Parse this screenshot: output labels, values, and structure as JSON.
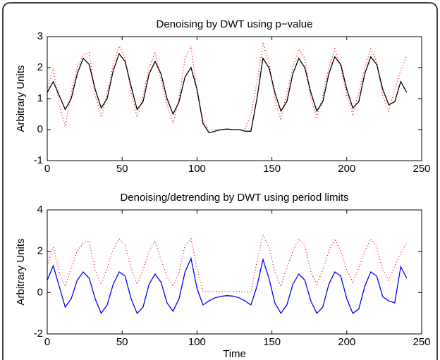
{
  "chart_data": [
    {
      "type": "line",
      "title": "Denoising by DWT using p−value",
      "y_label": "Arbitrary Units",
      "x": [
        0,
        4,
        8,
        12,
        16,
        20,
        24,
        28,
        32,
        36,
        40,
        44,
        48,
        52,
        56,
        60,
        64,
        68,
        72,
        76,
        80,
        84,
        88,
        92,
        96,
        100,
        104,
        108,
        112,
        116,
        120,
        124,
        128,
        132,
        136,
        140,
        144,
        148,
        152,
        156,
        160,
        164,
        168,
        172,
        176,
        180,
        184,
        188,
        192,
        196,
        200,
        204,
        208,
        212,
        216,
        220,
        224,
        228,
        232,
        236,
        240
      ],
      "series": [
        {
          "color": "#ff0000",
          "style": "dotted",
          "values": [
            1.3,
            2.0,
            0.8,
            0.1,
            1.2,
            2.0,
            2.4,
            2.5,
            1.1,
            0.4,
            1.2,
            2.1,
            2.7,
            2.3,
            1.2,
            0.4,
            1.1,
            2.0,
            2.5,
            1.6,
            0.8,
            0.2,
            1.0,
            2.3,
            2.7,
            1.2,
            0.3,
            0,
            0,
            0,
            0,
            0,
            0,
            0,
            0.5,
            1.5,
            2.8,
            2.2,
            1.0,
            0.3,
            1.2,
            2.0,
            2.6,
            2.3,
            1.0,
            0.4,
            1.1,
            2.0,
            2.6,
            2.0,
            1.1,
            0.5,
            1.2,
            2.0,
            2.6,
            2.2,
            1.1,
            0.6,
            1.3,
            1.9,
            2.4
          ]
        },
        {
          "color": "#000000",
          "style": "solid",
          "values": [
            1.2,
            1.55,
            1.1,
            0.65,
            1.0,
            1.8,
            2.3,
            2.1,
            1.3,
            0.7,
            1.0,
            1.9,
            2.45,
            2.2,
            1.4,
            0.65,
            0.9,
            1.8,
            2.2,
            1.8,
            1.0,
            0.5,
            0.9,
            1.7,
            2.0,
            1.3,
            0.2,
            -0.1,
            -0.05,
            0.0,
            0.02,
            0.0,
            0.0,
            -0.05,
            -0.05,
            1.0,
            2.3,
            2.0,
            1.2,
            0.6,
            0.9,
            1.8,
            2.3,
            2.0,
            1.2,
            0.6,
            0.9,
            1.8,
            2.35,
            2.1,
            1.3,
            0.7,
            0.9,
            1.8,
            2.35,
            2.1,
            1.3,
            0.8,
            0.9,
            1.55,
            1.2
          ]
        }
      ],
      "xlim": [
        0,
        250
      ],
      "xticks": [
        0,
        50,
        100,
        150,
        200,
        250
      ],
      "ylim": [
        -1,
        3
      ],
      "yticks": [
        -1,
        0,
        1,
        2,
        3
      ]
    },
    {
      "type": "line",
      "title": "Denoising/detrending by DWT using period limits",
      "y_label": "Arbitrary Units",
      "x_label": "Time",
      "x": [
        0,
        4,
        8,
        12,
        16,
        20,
        24,
        28,
        32,
        36,
        40,
        44,
        48,
        52,
        56,
        60,
        64,
        68,
        72,
        76,
        80,
        84,
        88,
        92,
        96,
        100,
        104,
        108,
        112,
        116,
        120,
        124,
        128,
        132,
        136,
        140,
        144,
        148,
        152,
        156,
        160,
        164,
        168,
        172,
        176,
        180,
        184,
        188,
        192,
        196,
        200,
        204,
        208,
        212,
        216,
        220,
        224,
        228,
        232,
        236,
        240
      ],
      "series": [
        {
          "color": "#ff0000",
          "style": "dotted",
          "values": [
            1.3,
            2.2,
            1.0,
            0.3,
            1.2,
            2.0,
            2.4,
            2.5,
            1.1,
            0.4,
            1.2,
            2.1,
            2.6,
            2.3,
            1.2,
            0.4,
            1.1,
            2.0,
            2.5,
            1.6,
            0.8,
            0.3,
            1.0,
            2.3,
            2.6,
            1.2,
            0.05,
            0.05,
            0.05,
            0.05,
            0.05,
            0.05,
            0.05,
            0.05,
            0.05,
            1.5,
            2.8,
            2.2,
            1.0,
            0.3,
            1.2,
            2.0,
            2.6,
            2.3,
            1.0,
            0.4,
            1.1,
            2.0,
            2.6,
            2.0,
            1.1,
            0.5,
            1.2,
            2.0,
            2.6,
            2.2,
            1.1,
            0.6,
            1.3,
            1.9,
            2.4
          ]
        },
        {
          "color": "#0000ff",
          "style": "solid",
          "values": [
            0.6,
            1.3,
            0.3,
            -0.7,
            -0.3,
            0.6,
            1.0,
            0.7,
            -0.3,
            -1.0,
            -0.6,
            0.4,
            1.0,
            0.8,
            -0.3,
            -1.0,
            -0.7,
            0.4,
            0.9,
            0.5,
            -0.5,
            -0.9,
            -0.3,
            1.0,
            1.65,
            0.2,
            -0.6,
            -0.4,
            -0.25,
            -0.18,
            -0.15,
            -0.17,
            -0.25,
            -0.4,
            -0.6,
            0.3,
            1.6,
            0.7,
            -0.5,
            -1.0,
            -0.6,
            0.4,
            0.9,
            0.6,
            -0.4,
            -1.0,
            -0.7,
            0.4,
            1.0,
            0.8,
            -0.3,
            -1.0,
            -0.8,
            0.3,
            1.0,
            0.8,
            -0.2,
            -0.4,
            -0.5,
            1.25,
            0.7
          ]
        }
      ],
      "xlim": [
        0,
        250
      ],
      "xticks": [
        0,
        50,
        100,
        150,
        200,
        250
      ],
      "ylim": [
        -2,
        4
      ],
      "yticks": [
        -2,
        0,
        2,
        4
      ]
    }
  ]
}
